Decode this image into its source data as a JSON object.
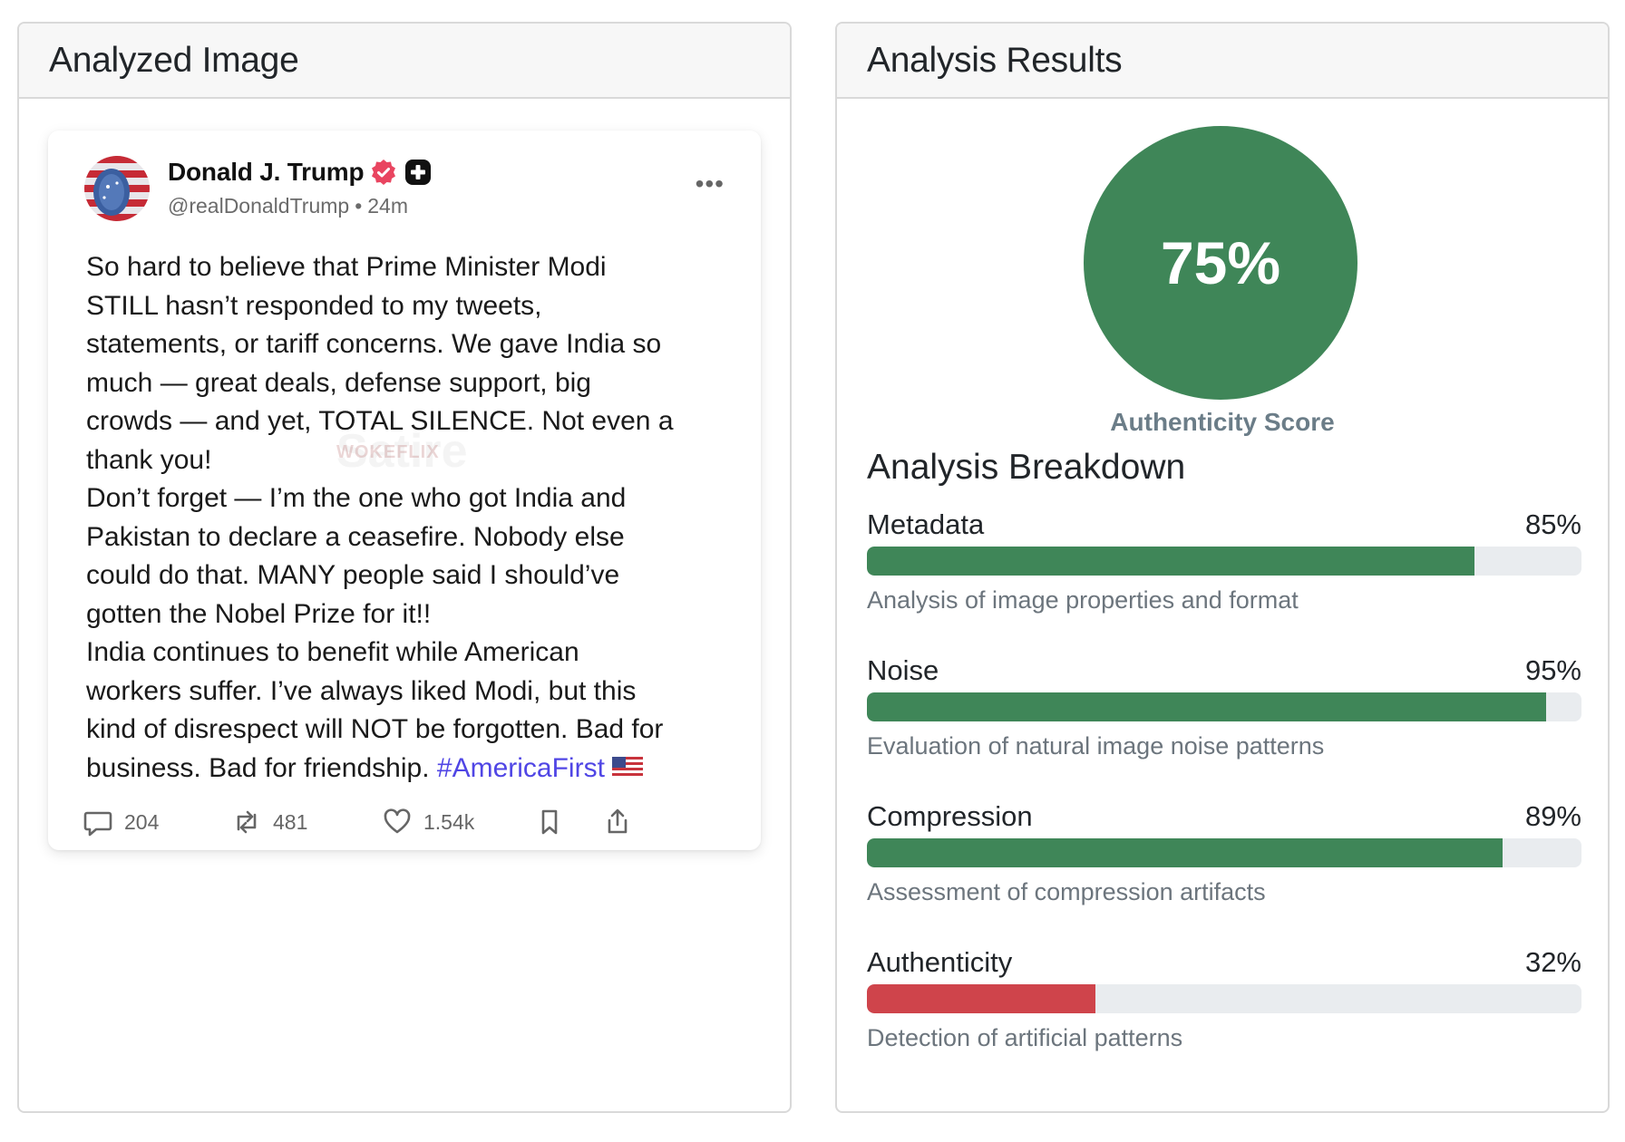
{
  "left_panel": {
    "title": "Analyzed Image"
  },
  "tweet": {
    "author": "Donald J. Trump",
    "handle": "@realDonaldTrump",
    "time": "24m",
    "text_before_hashtag": "So hard to believe that Prime Minister Modi\nSTILL hasn’t responded to my tweets,\nstatements, or tariff concerns. We gave India so\nmuch — great deals, defense support, big\ncrowds — and yet, TOTAL SILENCE. Not even a\nthank you!\nDon’t forget — I’m the one who got India and\nPakistan to declare a ceasefire. Nobody else\ncould do that. MANY people said I should’ve\ngotten the Nobel Prize for it!!\nIndia continues to benefit while American\nworkers suffer. I’ve always liked Modi, but this\nkind of disrespect will NOT be forgotten. Bad for\nbusiness. Bad for friendship. ",
    "hashtag": "#AmericaFirst",
    "watermark": "WOKEFLIX",
    "watermark_big": "Satire",
    "replies": "204",
    "reposts": "481",
    "likes": "1.54k"
  },
  "right_panel": {
    "title": "Analysis Results",
    "score": "75%",
    "score_label": "Authenticity Score",
    "breakdown_title": "Analysis Breakdown"
  },
  "metrics": [
    {
      "name": "Metadata",
      "value_label": "85%",
      "value": 85,
      "desc": "Analysis of image properties and format",
      "color": "#3f8658"
    },
    {
      "name": "Noise",
      "value_label": "95%",
      "value": 95,
      "desc": "Evaluation of natural image noise patterns",
      "color": "#3f8658"
    },
    {
      "name": "Compression",
      "value_label": "89%",
      "value": 89,
      "desc": "Assessment of compression artifacts",
      "color": "#3f8658"
    },
    {
      "name": "Authenticity",
      "value_label": "32%",
      "value": 32,
      "desc": "Detection of artificial patterns",
      "color": "#cf444b"
    }
  ]
}
